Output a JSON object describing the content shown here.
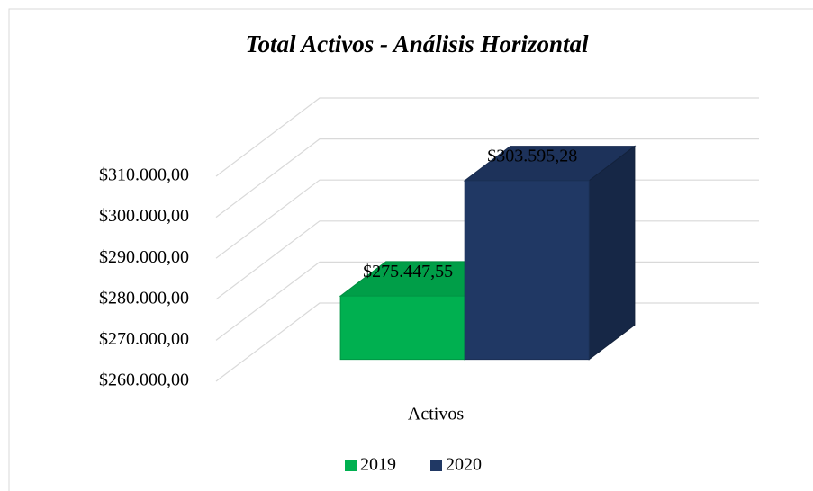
{
  "chart_data": {
    "type": "bar3d",
    "title": "Total Activos - Análisis Horizontal",
    "categories": [
      "Activos"
    ],
    "series": [
      {
        "name": "2019",
        "color": "#00b050",
        "values": [
          275447.55
        ],
        "value_labels": [
          "$275.447,55"
        ]
      },
      {
        "name": "2020",
        "color": "#203864",
        "values": [
          303595.28
        ],
        "value_labels": [
          "$303.595,28"
        ]
      }
    ],
    "ylim": [
      260000,
      310000
    ],
    "yticks": [
      {
        "value": 260000,
        "label": "$260.000,00"
      },
      {
        "value": 270000,
        "label": "$270.000,00"
      },
      {
        "value": 280000,
        "label": "$280.000,00"
      },
      {
        "value": 290000,
        "label": "$290.000,00"
      },
      {
        "value": 300000,
        "label": "$300.000,00"
      },
      {
        "value": 310000,
        "label": "$310.000,00"
      }
    ],
    "grid": true,
    "legend": "bottom"
  }
}
